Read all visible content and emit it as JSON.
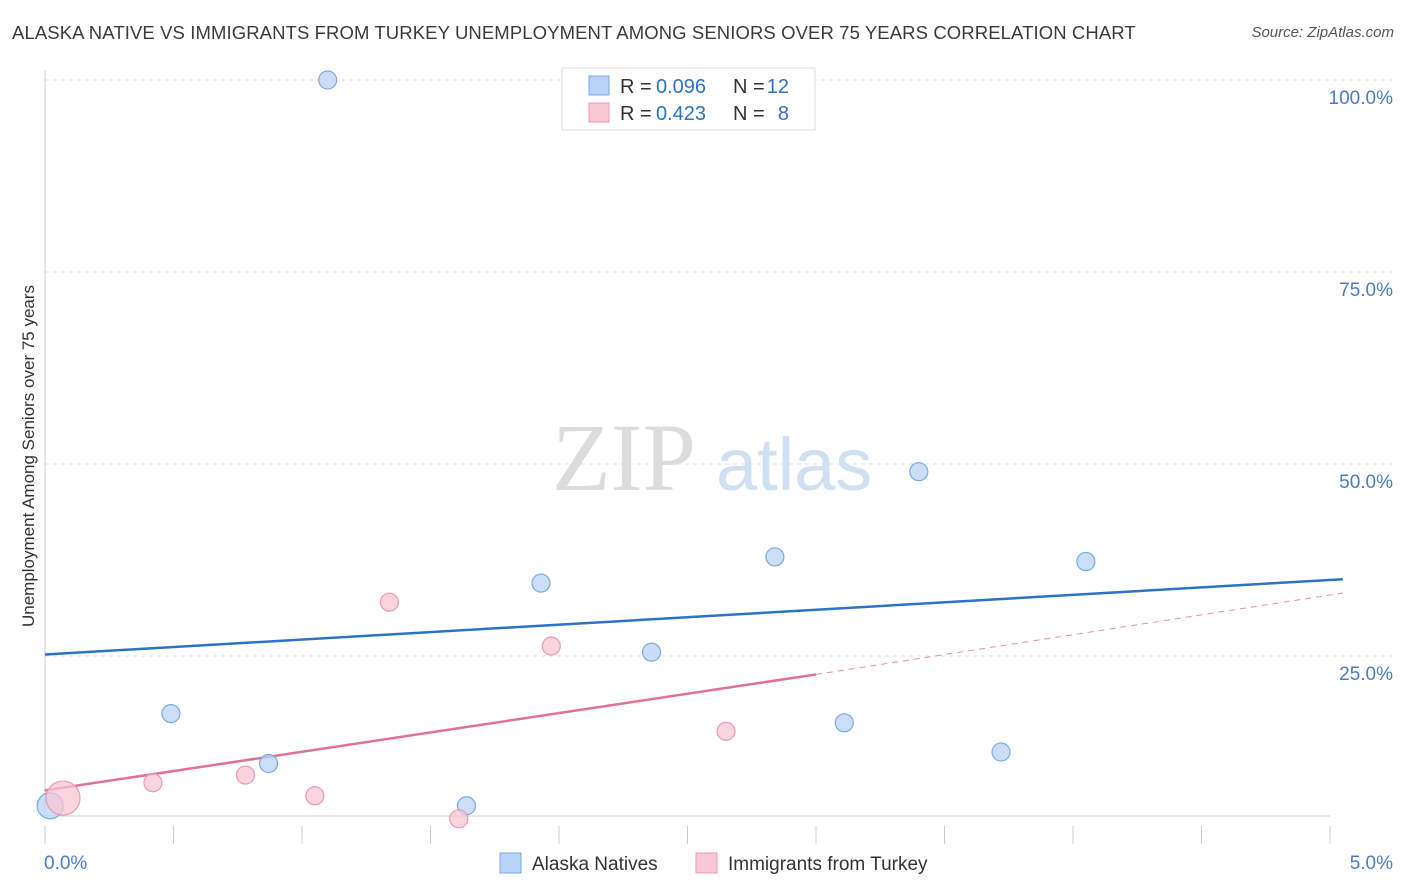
{
  "title": "ALASKA NATIVE VS IMMIGRANTS FROM TURKEY UNEMPLOYMENT AMONG SENIORS OVER 75 YEARS CORRELATION CHART",
  "source": "Source: ZipAtlas.com",
  "watermark": {
    "zip": "ZIP",
    "atlas": "atlas"
  },
  "colors": {
    "blue_fill": "#b8d3f5",
    "blue_stroke": "#7aaae3",
    "blue_line": "#2e72c6",
    "pink_fill": "#f8c6d4",
    "pink_stroke": "#ec9ab3",
    "pink_line": "#e0709a",
    "value_text": "#2e72c6",
    "grid": "#dddddd"
  },
  "legend": {
    "rows": [
      {
        "r_label": "R =",
        "r_value": "0.096",
        "n_label": "N =",
        "n_value": "12"
      },
      {
        "r_label": "R =",
        "r_value": "0.423",
        "n_label": "N =",
        "n_value": "8"
      }
    ]
  },
  "chart_data": {
    "type": "scatter",
    "title": "ALASKA NATIVE VS IMMIGRANTS FROM TURKEY UNEMPLOYMENT AMONG SENIORS OVER 75 YEARS CORRELATION CHART",
    "xlabel": "",
    "ylabel": "Unemployment Among Seniors over 75 years",
    "xlim": [
      0,
      5
    ],
    "ylim": [
      0,
      100
    ],
    "x_ticks": [
      "0.0%",
      "5.0%"
    ],
    "y_ticks": [
      {
        "value": 100,
        "label": "100.0%"
      },
      {
        "value": 75,
        "label": "75.0%"
      },
      {
        "value": 50,
        "label": "50.0%"
      },
      {
        "value": 25,
        "label": "25.0%"
      }
    ],
    "series": [
      {
        "name": "Alaska Natives",
        "points": [
          {
            "x": 0.02,
            "y": 5.5,
            "size": 12
          },
          {
            "x": 0.49,
            "y": 17.5,
            "size": 8
          },
          {
            "x": 0.87,
            "y": 11.0,
            "size": 8
          },
          {
            "x": 1.1,
            "y": 100.0,
            "size": 8
          },
          {
            "x": 1.64,
            "y": 5.5,
            "size": 8
          },
          {
            "x": 1.93,
            "y": 34.5,
            "size": 8
          },
          {
            "x": 2.36,
            "y": 25.5,
            "size": 8
          },
          {
            "x": 2.84,
            "y": 37.9,
            "size": 8
          },
          {
            "x": 3.11,
            "y": 16.3,
            "size": 8
          },
          {
            "x": 3.4,
            "y": 49.0,
            "size": 8
          },
          {
            "x": 3.72,
            "y": 12.5,
            "size": 8
          },
          {
            "x": 4.05,
            "y": 37.3,
            "size": 8
          }
        ],
        "trend": {
          "x0": 0.0,
          "y0": 25.2,
          "x1": 5.05,
          "y1": 35.0
        }
      },
      {
        "name": "Immigrants from Turkey",
        "points": [
          {
            "x": 0.07,
            "y": 6.5,
            "size": 16
          },
          {
            "x": 0.42,
            "y": 8.5,
            "size": 8
          },
          {
            "x": 0.78,
            "y": 9.5,
            "size": 8
          },
          {
            "x": 1.05,
            "y": 6.8,
            "size": 8
          },
          {
            "x": 1.34,
            "y": 32.0,
            "size": 8
          },
          {
            "x": 1.61,
            "y": 3.8,
            "size": 8
          },
          {
            "x": 1.97,
            "y": 26.3,
            "size": 8
          },
          {
            "x": 2.65,
            "y": 15.2,
            "size": 8
          }
        ],
        "trend": {
          "x0": 0.0,
          "y0": 7.5,
          "x1": 3.0,
          "y1": 22.6
        },
        "trend_extension": {
          "x0": 3.0,
          "y0": 22.6,
          "x1": 5.05,
          "y1": 33.2
        }
      }
    ],
    "legend_position": "top-center"
  }
}
